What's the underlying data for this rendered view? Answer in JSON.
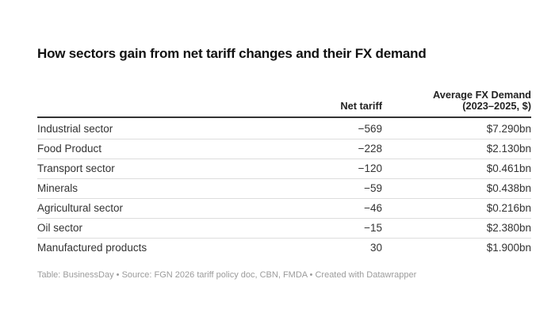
{
  "header": {
    "title": "How sectors gain from net tariff changes and their FX demand"
  },
  "chart_data": {
    "type": "table",
    "title": "How sectors gain from net tariff changes and their FX demand",
    "columns": [
      "",
      "Net tariff",
      "Average FX Demand (2023–2025, $)"
    ],
    "rows": [
      [
        "Industrial sector",
        -569,
        "$7.290bn"
      ],
      [
        "Food Product",
        -228,
        "$2.130bn"
      ],
      [
        "Transport sector",
        -120,
        "$0.461bn"
      ],
      [
        "Minerals",
        -59,
        "$0.438bn"
      ],
      [
        "Agricultural sector",
        -46,
        "$0.216bn"
      ],
      [
        "Oil sector",
        -15,
        "$2.380bn"
      ],
      [
        "Manufactured products",
        30,
        "$1.900bn"
      ]
    ],
    "footer": "Table: BusinessDay • Source: FGN 2026 tariff policy doc, CBN, FMDA • Created with Datawrapper"
  },
  "table": {
    "headers": {
      "sector": "",
      "net_tariff": "Net tariff",
      "fx_demand": "Average FX Demand\n(2023–2025, $)"
    },
    "rows": [
      {
        "sector": "Industrial sector",
        "net_tariff": "−569",
        "fx_demand": "$7.290bn"
      },
      {
        "sector": "Food Product",
        "net_tariff": "−228",
        "fx_demand": "$2.130bn"
      },
      {
        "sector": "Transport sector",
        "net_tariff": "−120",
        "fx_demand": "$0.461bn"
      },
      {
        "sector": "Minerals",
        "net_tariff": "−59",
        "fx_demand": "$0.438bn"
      },
      {
        "sector": "Agricultural sector",
        "net_tariff": "−46",
        "fx_demand": "$0.216bn"
      },
      {
        "sector": "Oil sector",
        "net_tariff": "−15",
        "fx_demand": "$2.380bn"
      },
      {
        "sector": "Manufactured products",
        "net_tariff": "30",
        "fx_demand": "$1.900bn"
      }
    ]
  },
  "footer": {
    "credit": "Table: BusinessDay • Source: FGN 2026 tariff policy doc, CBN, FMDA • Created with Datawrapper"
  },
  "colors": {
    "background": "#ffffff",
    "title_text": "#111111",
    "body_text": "#333333",
    "header_rule": "#333333",
    "row_divider": "#dddddd",
    "footer_text": "#9b9b9b"
  }
}
